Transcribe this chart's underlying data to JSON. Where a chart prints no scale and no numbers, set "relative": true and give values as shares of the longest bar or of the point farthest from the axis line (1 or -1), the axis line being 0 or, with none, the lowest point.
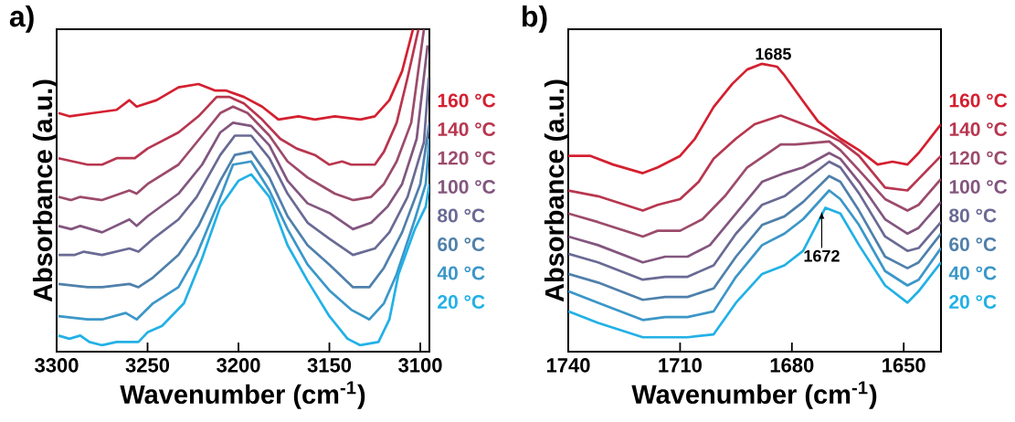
{
  "chart_data": [
    {
      "type": "line",
      "title": "a)",
      "xlabel": "Wavenumber (cm$^{-1}$)",
      "ylabel": "Absorbance (a.u.)",
      "xlim": [
        3300,
        3095
      ],
      "xticks": [
        3300,
        3250,
        3200,
        3150,
        3100
      ],
      "relative": true,
      "legend": "right",
      "series": [
        {
          "name": "160 °C",
          "color": "#d42030",
          "x": [
            3299,
            3293,
            3280,
            3267,
            3260,
            3256,
            3245,
            3233,
            3222,
            3213,
            3207,
            3197,
            3187,
            3178,
            3167,
            3158,
            3147,
            3133,
            3125,
            3117,
            3110,
            3104
          ],
          "values": [
            0.74,
            0.73,
            0.74,
            0.75,
            0.78,
            0.76,
            0.78,
            0.82,
            0.83,
            0.81,
            0.81,
            0.79,
            0.76,
            0.72,
            0.73,
            0.72,
            0.73,
            0.72,
            0.73,
            0.78,
            0.87,
            1.0
          ]
        },
        {
          "name": "140 °C",
          "color": "#b8364f",
          "x": [
            3299,
            3283,
            3275,
            3267,
            3257,
            3250,
            3233,
            3222,
            3212,
            3205,
            3197,
            3187,
            3177,
            3168,
            3158,
            3150,
            3143,
            3138,
            3125,
            3120,
            3113,
            3107,
            3101
          ],
          "values": [
            0.6,
            0.58,
            0.58,
            0.6,
            0.6,
            0.63,
            0.68,
            0.73,
            0.79,
            0.79,
            0.77,
            0.72,
            0.66,
            0.63,
            0.61,
            0.58,
            0.59,
            0.58,
            0.58,
            0.62,
            0.71,
            0.85,
            1.0
          ]
        },
        {
          "name": "120 °C",
          "color": "#9c4b6b",
          "x": [
            3299,
            3292,
            3287,
            3275,
            3260,
            3256,
            3250,
            3233,
            3220,
            3210,
            3203,
            3195,
            3183,
            3173,
            3162,
            3153,
            3147,
            3137,
            3127,
            3120,
            3113,
            3105,
            3098
          ],
          "values": [
            0.48,
            0.47,
            0.48,
            0.47,
            0.5,
            0.49,
            0.52,
            0.58,
            0.67,
            0.74,
            0.76,
            0.74,
            0.67,
            0.59,
            0.54,
            0.51,
            0.49,
            0.47,
            0.48,
            0.52,
            0.59,
            0.71,
            1.0
          ]
        },
        {
          "name": "100 °C",
          "color": "#82567f",
          "x": [
            3299,
            3292,
            3287,
            3275,
            3260,
            3256,
            3250,
            3233,
            3220,
            3210,
            3203,
            3193,
            3183,
            3173,
            3162,
            3150,
            3137,
            3127,
            3118,
            3110,
            3102,
            3096
          ],
          "values": [
            0.39,
            0.38,
            0.39,
            0.37,
            0.41,
            0.39,
            0.42,
            0.49,
            0.58,
            0.68,
            0.71,
            0.7,
            0.64,
            0.53,
            0.46,
            0.43,
            0.38,
            0.4,
            0.45,
            0.52,
            0.66,
            0.95
          ]
        },
        {
          "name": "80 °C",
          "color": "#6a6a95",
          "x": [
            3299,
            3290,
            3285,
            3275,
            3260,
            3255,
            3247,
            3233,
            3223,
            3210,
            3202,
            3193,
            3183,
            3173,
            3162,
            3150,
            3137,
            3125,
            3117,
            3107,
            3098,
            3095.3
          ],
          "values": [
            0.3,
            0.3,
            0.31,
            0.3,
            0.32,
            0.31,
            0.35,
            0.41,
            0.48,
            0.61,
            0.67,
            0.67,
            0.6,
            0.49,
            0.4,
            0.35,
            0.3,
            0.32,
            0.37,
            0.48,
            0.65,
            0.85
          ]
        },
        {
          "name": "60 °C",
          "color": "#4f80ab",
          "x": [
            3299,
            3283,
            3275,
            3260,
            3255,
            3247,
            3233,
            3222,
            3210,
            3202,
            3193,
            3183,
            3173,
            3162,
            3150,
            3137,
            3128,
            3120,
            3110,
            3100,
            3095
          ],
          "values": [
            0.21,
            0.2,
            0.2,
            0.21,
            0.2,
            0.23,
            0.3,
            0.39,
            0.53,
            0.61,
            0.62,
            0.54,
            0.42,
            0.33,
            0.27,
            0.2,
            0.2,
            0.26,
            0.37,
            0.52,
            0.71
          ]
        },
        {
          "name": "40 °C",
          "color": "#3b97c8",
          "x": [
            3299,
            3283,
            3275,
            3262,
            3256,
            3247,
            3233,
            3223,
            3212,
            3203,
            3193,
            3183,
            3173,
            3162,
            3150,
            3138,
            3128,
            3120,
            3113,
            3103,
            3097,
            3095
          ],
          "values": [
            0.11,
            0.1,
            0.1,
            0.12,
            0.1,
            0.15,
            0.2,
            0.3,
            0.45,
            0.58,
            0.59,
            0.5,
            0.38,
            0.27,
            0.19,
            0.13,
            0.1,
            0.15,
            0.24,
            0.41,
            0.52,
            0.66
          ]
        },
        {
          "name": "20 °C",
          "color": "#22b1e6",
          "x": [
            3299,
            3293,
            3287,
            3282,
            3275,
            3267,
            3255,
            3250,
            3242,
            3230,
            3220,
            3210,
            3200,
            3193,
            3183,
            3173,
            3162,
            3150,
            3140,
            3133,
            3123,
            3117,
            3112,
            3103,
            3097,
            3095
          ],
          "values": [
            0.05,
            0.04,
            0.05,
            0.03,
            0.02,
            0.03,
            0.03,
            0.06,
            0.08,
            0.15,
            0.29,
            0.45,
            0.53,
            0.55,
            0.48,
            0.33,
            0.22,
            0.11,
            0.04,
            0.02,
            0.03,
            0.1,
            0.24,
            0.38,
            0.45,
            0.52
          ]
        }
      ]
    },
    {
      "type": "line",
      "title": "b)",
      "xlabel": "Wavenumber (cm$^{-1}$)",
      "ylabel": "Absorbance (a.u.)",
      "xlim": [
        1740,
        1640
      ],
      "xticks": [
        1740,
        1710,
        1680,
        1650
      ],
      "relative": true,
      "legend": "right",
      "annotations": [
        {
          "text": "1685",
          "x": 1685,
          "y": 1.0
        },
        {
          "text": "1672",
          "x": 1672,
          "y": 0.5
        }
      ],
      "series": [
        {
          "name": "160 °C",
          "color": "#d42030",
          "x": [
            1740,
            1734,
            1728,
            1720,
            1716,
            1710,
            1706,
            1701,
            1696,
            1692,
            1688,
            1684,
            1682,
            1677,
            1673,
            1667,
            1662,
            1657,
            1653,
            1649,
            1646,
            1640
          ],
          "values": [
            0.68,
            0.68,
            0.65,
            0.62,
            0.64,
            0.68,
            0.74,
            0.85,
            0.93,
            0.98,
            1.0,
            0.99,
            0.96,
            0.87,
            0.8,
            0.74,
            0.7,
            0.65,
            0.66,
            0.65,
            0.69,
            0.79
          ]
        },
        {
          "name": "140 °C",
          "color": "#b8364f",
          "x": [
            1740,
            1732,
            1720,
            1716,
            1710,
            1705,
            1701,
            1695,
            1690,
            1683,
            1679,
            1673,
            1667,
            1662,
            1655,
            1649,
            1646,
            1640
          ],
          "values": [
            0.56,
            0.54,
            0.49,
            0.51,
            0.53,
            0.59,
            0.67,
            0.74,
            0.79,
            0.82,
            0.8,
            0.77,
            0.73,
            0.68,
            0.57,
            0.56,
            0.6,
            0.68
          ]
        },
        {
          "name": "120 °C",
          "color": "#9c4b6b",
          "x": [
            1740,
            1732,
            1720,
            1716,
            1710,
            1704,
            1698,
            1692,
            1683,
            1679,
            1670,
            1667,
            1662,
            1655,
            1649,
            1646,
            1640
          ],
          "values": [
            0.48,
            0.45,
            0.4,
            0.42,
            0.42,
            0.46,
            0.54,
            0.64,
            0.72,
            0.72,
            0.73,
            0.7,
            0.63,
            0.53,
            0.49,
            0.51,
            0.6
          ]
        },
        {
          "name": "100 °C",
          "color": "#82567f",
          "x": [
            1740,
            1732,
            1720,
            1714,
            1708,
            1702,
            1695,
            1688,
            1682,
            1677,
            1670,
            1667,
            1662,
            1655,
            1649,
            1646,
            1640
          ],
          "values": [
            0.4,
            0.37,
            0.31,
            0.33,
            0.33,
            0.37,
            0.48,
            0.59,
            0.62,
            0.64,
            0.69,
            0.67,
            0.59,
            0.46,
            0.41,
            0.43,
            0.52
          ]
        },
        {
          "name": "80 °C",
          "color": "#6a6a95",
          "x": [
            1740,
            1732,
            1720,
            1714,
            1708,
            1701,
            1695,
            1688,
            1682,
            1677,
            1670,
            1667,
            1662,
            1655,
            1649,
            1646,
            1640
          ],
          "values": [
            0.34,
            0.31,
            0.25,
            0.26,
            0.26,
            0.3,
            0.41,
            0.51,
            0.54,
            0.59,
            0.66,
            0.64,
            0.55,
            0.4,
            0.35,
            0.36,
            0.45
          ]
        },
        {
          "name": "60 °C",
          "color": "#4f80ab",
          "x": [
            1740,
            1732,
            1720,
            1714,
            1708,
            1701,
            1695,
            1688,
            1682,
            1677,
            1670,
            1667,
            1662,
            1655,
            1649,
            1646,
            1640
          ],
          "values": [
            0.27,
            0.24,
            0.18,
            0.19,
            0.19,
            0.22,
            0.33,
            0.44,
            0.47,
            0.52,
            0.61,
            0.59,
            0.49,
            0.33,
            0.29,
            0.31,
            0.41
          ]
        },
        {
          "name": "40 °C",
          "color": "#3b97c8",
          "x": [
            1740,
            1732,
            1720,
            1714,
            1708,
            1701,
            1695,
            1688,
            1682,
            1677,
            1670,
            1667,
            1662,
            1655,
            1649,
            1646,
            1640
          ],
          "values": [
            0.21,
            0.17,
            0.11,
            0.12,
            0.12,
            0.14,
            0.26,
            0.37,
            0.41,
            0.46,
            0.56,
            0.53,
            0.44,
            0.28,
            0.23,
            0.25,
            0.36
          ]
        },
        {
          "name": "20 °C",
          "color": "#22b1e6",
          "x": [
            1740,
            1732,
            1720,
            1714,
            1708,
            1701,
            1695,
            1688,
            1682,
            1677,
            1671,
            1667,
            1662,
            1655,
            1649,
            1646,
            1640
          ],
          "values": [
            0.14,
            0.1,
            0.05,
            0.05,
            0.05,
            0.06,
            0.17,
            0.27,
            0.3,
            0.35,
            0.5,
            0.48,
            0.37,
            0.23,
            0.17,
            0.21,
            0.31
          ]
        }
      ]
    }
  ]
}
